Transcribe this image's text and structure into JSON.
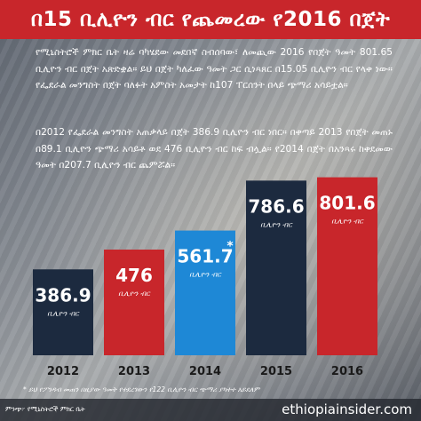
{
  "header": {
    "title": "በ15 ቢሊዮን ብር የጨመረው የ2016 በጀት"
  },
  "paragraphs": [
    "የሚኒስትሮች ምክር ቤት ዛሬ ባካሄደው መደበኛ ስብሰባው፣ ለመጪው 2016 የበጀት ዓመት 801.65 ቢሊዮን ብር በጀት አጽድቋል። ይህ በጀት ካለፈው ዓመት ጋር ሲነጻጸር በ15.05 ቢሊዮን ብር የላቀ ነው። የፌደራል መንግስት በጀት ባለፉት አምስት አመታት ከ107 ፐርሰንት በላይ ጭማሪ አሳይቷል።",
    "በ2012 የፌደራል መንግስት አጠቃላይ በጀት 386.9 ቢሊዮን ብር ነበር። በቀጣይ 2013 የበጀት መጠኑ በ89.1 ቢሊዮን ጭማሪ አሳይቶ ወደ 476 ቢሊዮን ብር ከፍ ብሏል። የ2014 በጀት በአንጻሩ ከቀደመው ዓመት በ207.7 ቢሊዮን ብር ጨምሯል።"
  ],
  "chart_data": {
    "type": "bar",
    "categories": [
      "2012",
      "2013",
      "2014",
      "2015",
      "2016"
    ],
    "values": [
      386.9,
      476,
      561.7,
      786.6,
      801.6
    ],
    "value_labels": [
      "386.9",
      "476",
      "561.7",
      "786.6",
      "801.6"
    ],
    "unit_label": "ቢሊዮን ብር",
    "annotations": [
      "",
      "",
      "*",
      "",
      ""
    ],
    "colors": [
      "#1c2a3f",
      "#c8262b",
      "#1e88d6",
      "#1c2a3f",
      "#c8262b"
    ],
    "ylim": [
      0,
      860
    ],
    "grid": false,
    "legend": "none"
  },
  "footnote": "*  ይህ የፖንዳብ መጠን በዚያው ዓመት የተደረገውን የ122 ቢሊዮን ብር ጭማሪ ያካተተ አይደለም",
  "source": "ምንጭ፦ የሚኒስትሮች ምክር ቤት",
  "website": "ethiopiainsider.com",
  "colors": {
    "header": "#c8262b",
    "navy": "#1c2a3f",
    "blue": "#1e88d6",
    "red": "#c8262b"
  }
}
